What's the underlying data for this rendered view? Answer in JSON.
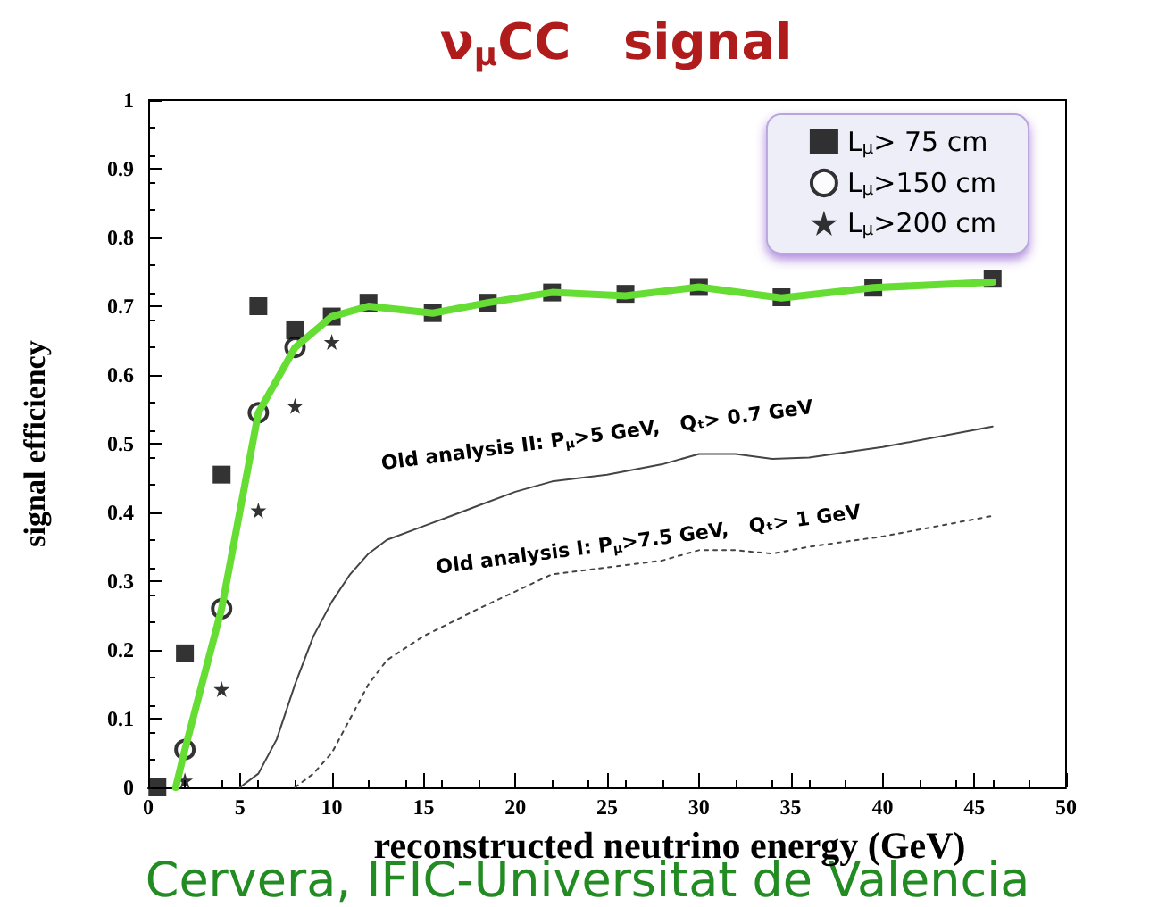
{
  "chart_data": {
    "type": "scatter",
    "title": "ν$_{μ}$CC   signal",
    "xlabel": "reconstructed neutrino energy (GeV)",
    "ylabel": "signal efficiency",
    "xlim": [
      0,
      50
    ],
    "xticks": [
      0,
      5,
      10,
      15,
      20,
      25,
      30,
      35,
      40,
      45,
      50
    ],
    "ylim": [
      0,
      1
    ],
    "yticks": [
      0,
      0.1,
      0.2,
      0.3,
      0.4,
      0.5,
      0.6,
      0.7,
      0.8,
      0.9,
      1
    ],
    "grid": false,
    "legend": "top right",
    "series": [
      {
        "name": "L$_{μ}$> 75 cm",
        "marker": "square",
        "color": "#000000",
        "x": [
          0.5,
          2,
          4,
          6,
          8,
          10,
          12,
          15.5,
          18.5,
          22,
          26,
          30,
          34.5,
          39.5,
          46
        ],
        "values": [
          0,
          0.195,
          0.455,
          0.7,
          0.665,
          0.685,
          0.705,
          0.69,
          0.705,
          0.72,
          0.718,
          0.728,
          0.713,
          0.727,
          0.74
        ]
      },
      {
        "name": "L$_{μ}$>150 cm",
        "marker": "circle",
        "color": "#000000",
        "x": [
          2,
          4,
          6,
          8
        ],
        "values": [
          0.055,
          0.26,
          0.545,
          0.64
        ]
      },
      {
        "name": "L$_{μ}$>200 cm",
        "marker": "star",
        "color": "#000000",
        "x": [
          2,
          4,
          6,
          8,
          10
        ],
        "values": [
          0.01,
          0.143,
          0.403,
          0.555,
          0.648
        ]
      },
      {
        "type": "line",
        "marker": "none",
        "line_style": "solid",
        "color": "#66dd33",
        "x": [
          1.5,
          2,
          4,
          6,
          8,
          10,
          12,
          15.5,
          18.5,
          22,
          26,
          30,
          34.5,
          39.5,
          46
        ],
        "values": [
          0,
          0.055,
          0.26,
          0.545,
          0.64,
          0.685,
          0.7,
          0.69,
          0.705,
          0.72,
          0.715,
          0.728,
          0.712,
          0.727,
          0.735
        ]
      },
      {
        "name": "Old analysis II: P$_{μ}$>5 GeV,   Qₜ> 0.7 GeV",
        "type": "line",
        "marker": "none",
        "line_style": "solid",
        "color": "#444444",
        "x": [
          5,
          6,
          7,
          8,
          9,
          10,
          11,
          12,
          13,
          15,
          18,
          20,
          22,
          25,
          28,
          30,
          32,
          34,
          36,
          40,
          46
        ],
        "values": [
          0,
          0.02,
          0.07,
          0.15,
          0.22,
          0.27,
          0.31,
          0.34,
          0.36,
          0.38,
          0.41,
          0.43,
          0.445,
          0.455,
          0.47,
          0.485,
          0.485,
          0.478,
          0.48,
          0.495,
          0.525
        ]
      },
      {
        "name": "Old analysis I: P$_{μ}$>7.5 GeV,   Qₜ> 1 GeV",
        "type": "line",
        "marker": "none",
        "line_style": "dotted",
        "color": "#444444",
        "x": [
          8,
          9,
          10,
          11,
          12,
          13,
          15,
          18,
          20,
          22,
          25,
          28,
          30,
          32,
          34,
          36,
          40,
          46
        ],
        "values": [
          0,
          0.02,
          0.05,
          0.1,
          0.15,
          0.185,
          0.22,
          0.26,
          0.285,
          0.31,
          0.32,
          0.33,
          0.345,
          0.345,
          0.34,
          0.35,
          0.365,
          0.395
        ]
      }
    ],
    "annotations": [
      "Cervera, IFIC-Universitat de Valencia"
    ]
  }
}
